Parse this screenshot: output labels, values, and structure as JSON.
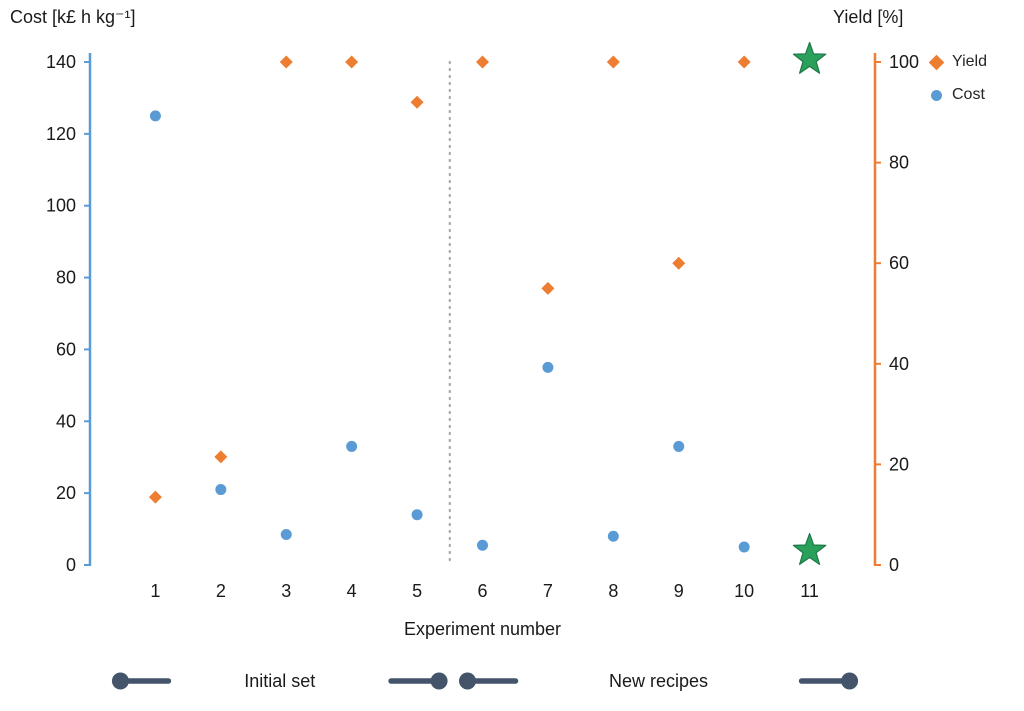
{
  "chart_data": {
    "type": "scatter",
    "xlabel": "Experiment number",
    "x": [
      1,
      2,
      3,
      4,
      5,
      6,
      7,
      8,
      9,
      10,
      11
    ],
    "left_axis": {
      "title": "Cost [k£ h kg⁻¹]",
      "ticks": [
        0,
        20,
        40,
        60,
        80,
        100,
        120,
        140
      ],
      "range": [
        0,
        140
      ],
      "color": "#5B9BD5"
    },
    "right_axis": {
      "title": "Yield [%]",
      "ticks": [
        0,
        20,
        40,
        60,
        80,
        100
      ],
      "range": [
        0,
        100
      ],
      "color": "#ED7D31"
    },
    "series": [
      {
        "name": "Yield",
        "axis": "right",
        "marker": "diamond",
        "color": "#ED7D31",
        "points": [
          {
            "x": 1,
            "y": 13.5
          },
          {
            "x": 2,
            "y": 21.5
          },
          {
            "x": 3,
            "y": 100
          },
          {
            "x": 4,
            "y": 100
          },
          {
            "x": 5,
            "y": 92
          },
          {
            "x": 6,
            "y": 100
          },
          {
            "x": 7,
            "y": 55
          },
          {
            "x": 8,
            "y": 100
          },
          {
            "x": 9,
            "y": 60
          },
          {
            "x": 10,
            "y": 100
          }
        ]
      },
      {
        "name": "Cost",
        "axis": "left",
        "marker": "circle",
        "color": "#5B9BD5",
        "points": [
          {
            "x": 1,
            "y": 125
          },
          {
            "x": 2,
            "y": 21
          },
          {
            "x": 3,
            "y": 8.5
          },
          {
            "x": 4,
            "y": 33
          },
          {
            "x": 5,
            "y": 14
          },
          {
            "x": 6,
            "y": 5.5
          },
          {
            "x": 7,
            "y": 55
          },
          {
            "x": 8,
            "y": 8
          },
          {
            "x": 9,
            "y": 33
          },
          {
            "x": 10,
            "y": 5
          }
        ]
      }
    ],
    "stars": [
      {
        "x": 11,
        "axis": "right",
        "y": 100.5
      },
      {
        "x": 11,
        "axis": "left",
        "y": 4
      }
    ],
    "star_color": "#2BA05A",
    "star_edge_color": "#1D7A4A",
    "separator_x": 5.5,
    "separator_color": "#A6A6A6",
    "legend": [
      {
        "label": "Yield",
        "marker": "diamond",
        "color": "#ED7D31"
      },
      {
        "label": "Cost",
        "marker": "circle",
        "color": "#5B9BD5"
      }
    ],
    "ranges": [
      {
        "label": "Initial set",
        "x_start": 1,
        "x_end": 5
      },
      {
        "label": "New recipes",
        "x_start": 6,
        "x_end": 11
      }
    ],
    "range_color": "#44546A",
    "text_color": "#1a1a1a"
  }
}
